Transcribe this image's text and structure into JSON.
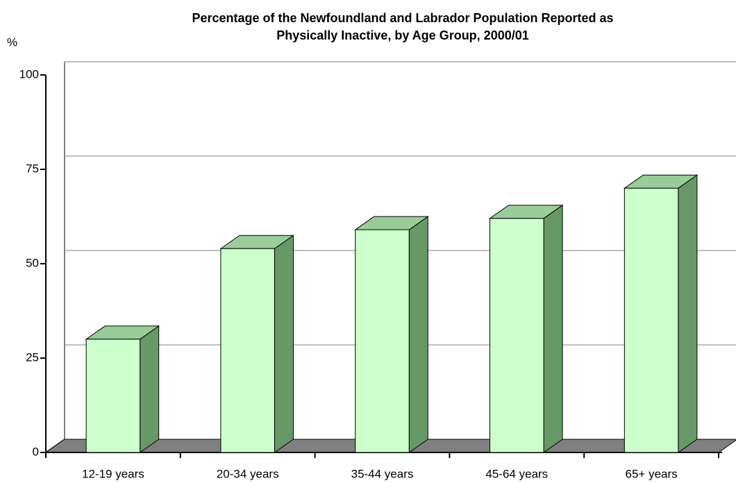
{
  "chart_data": {
    "type": "bar3d",
    "title": [
      "Percentage of the Newfoundland and Labrador Population Reported as",
      "Physically Inactive, by Age Group, 2000/01"
    ],
    "y_label": "%",
    "categories": [
      "12-19 years",
      "20-34 years",
      "35-44 years",
      "45-64 years",
      "65+ years"
    ],
    "values": [
      30,
      54,
      59,
      62,
      70
    ],
    "color": "#ccffcc",
    "ylim": [
      0,
      100
    ],
    "yticks": [
      0,
      25,
      50,
      75,
      100
    ],
    "grid": true
  }
}
